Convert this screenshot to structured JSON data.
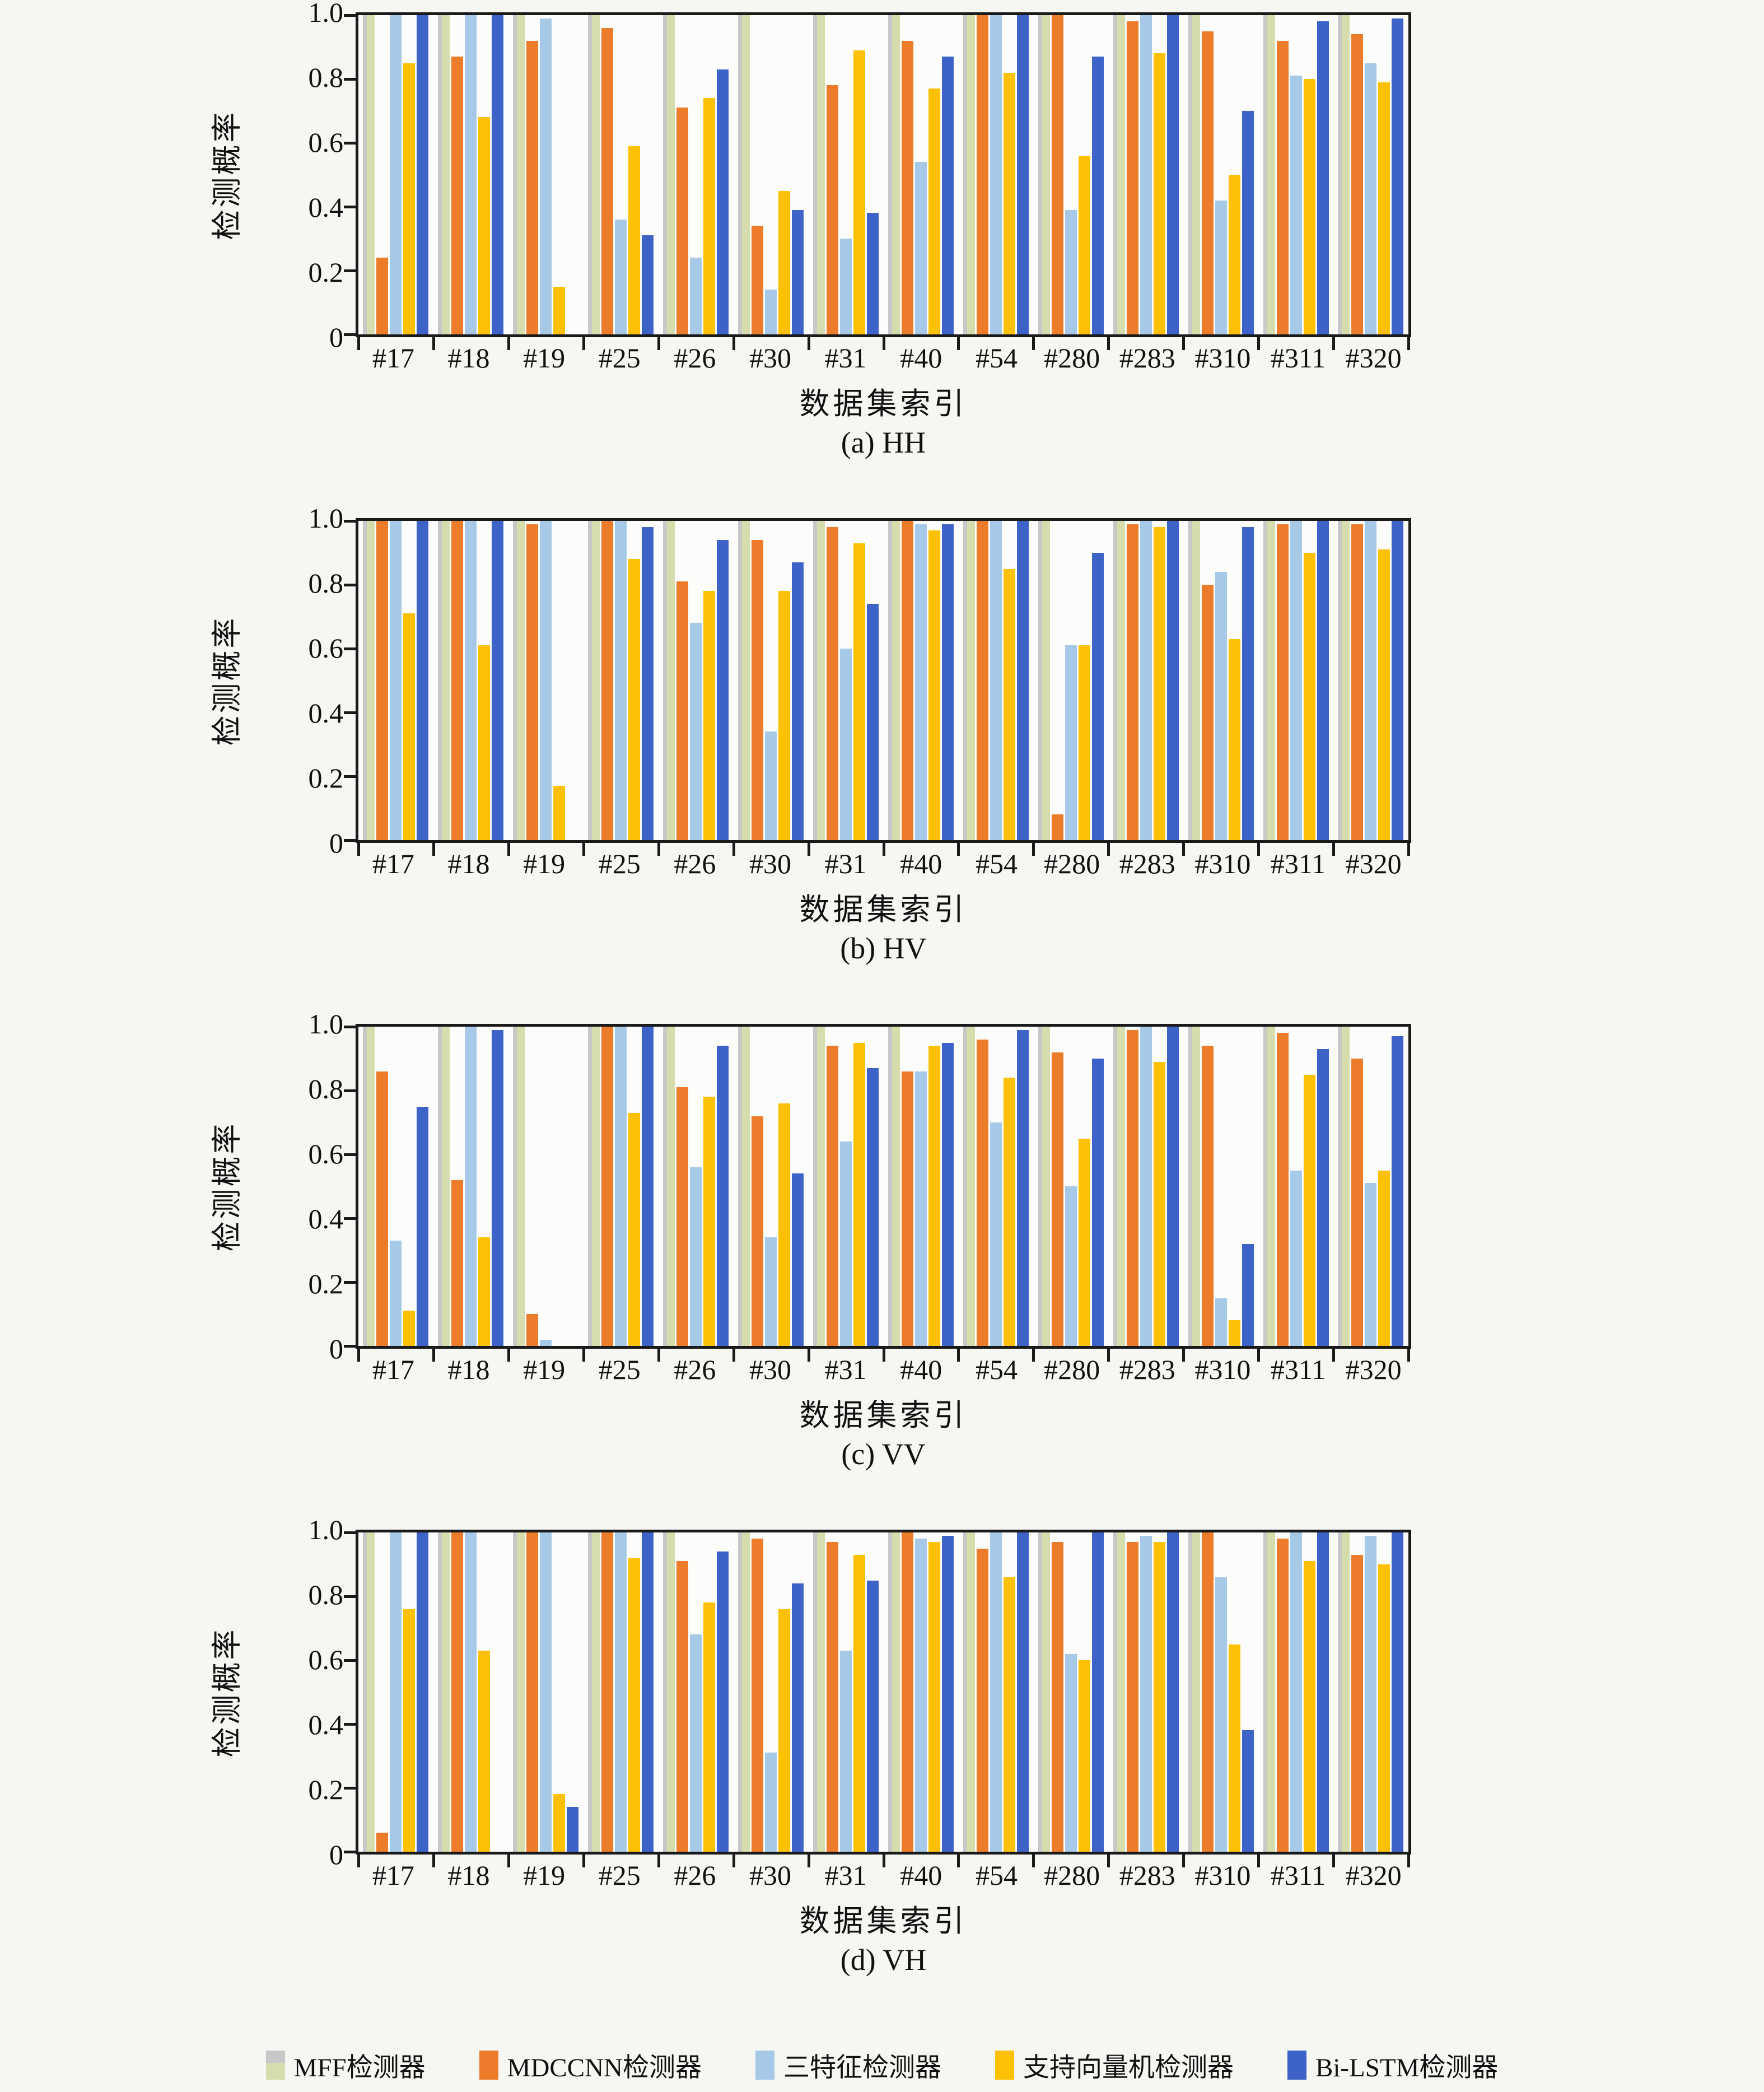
{
  "figure": {
    "background": "#f6f6f3",
    "plot_background": "#fcfcfa",
    "axis_color": "#1a1a1a",
    "ylabel": "检测概率",
    "xlabel": "数据集索引",
    "yticks": [
      "1.0",
      "0.8",
      "0.6",
      "0.4",
      "0.2",
      "0"
    ],
    "legend": [
      {
        "key": "mff",
        "label": "MFF检测器",
        "color": "#d6dcab",
        "swatch_top": "#c8c8c8"
      },
      {
        "key": "mdccnn",
        "label": "MDCCNN检测器",
        "color": "#ec7c2a"
      },
      {
        "key": "threefeat",
        "label": "三特征检测器",
        "color": "#a7c9e8"
      },
      {
        "key": "svm",
        "label": "支持向量机检测器",
        "color": "#fcc105"
      },
      {
        "key": "bilstm",
        "label": "Bi-LSTM检测器",
        "color": "#3d63c9"
      }
    ]
  },
  "chart_data": [
    {
      "type": "bar",
      "title": "(a) HH",
      "xlabel": "数据集索引",
      "ylabel": "检测概率",
      "ylim": [
        0,
        1
      ],
      "grid": false,
      "legend_position": "bottom-of-figure",
      "categories": [
        "#17",
        "#18",
        "#19",
        "#25",
        "#26",
        "#30",
        "#31",
        "#40",
        "#54",
        "#280",
        "#283",
        "#310",
        "#311",
        "#320"
      ],
      "series": [
        {
          "name": "MFF检测器",
          "key": "mff",
          "color": "#d6dcab",
          "values": [
            1.0,
            1.0,
            1.0,
            1.0,
            1.0,
            1.0,
            1.0,
            1.0,
            1.0,
            1.0,
            1.0,
            1.0,
            1.0,
            1.0
          ]
        },
        {
          "name": "MDCCNN检测器",
          "key": "mdccnn",
          "color": "#ec7c2a",
          "values": [
            0.24,
            0.87,
            0.92,
            0.96,
            0.71,
            0.34,
            0.78,
            0.92,
            1.0,
            1.0,
            0.98,
            0.95,
            0.92,
            0.94
          ]
        },
        {
          "name": "三特征检测器",
          "key": "threefeat",
          "color": "#a7c9e8",
          "values": [
            1.0,
            1.0,
            0.99,
            0.36,
            0.24,
            0.14,
            0.3,
            0.54,
            1.0,
            0.39,
            1.0,
            0.42,
            0.81,
            0.85
          ]
        },
        {
          "name": "支持向量机检测器",
          "key": "svm",
          "color": "#fcc105",
          "values": [
            0.85,
            0.68,
            0.15,
            0.59,
            0.74,
            0.45,
            0.89,
            0.77,
            0.82,
            0.56,
            0.88,
            0.5,
            0.8,
            0.79
          ]
        },
        {
          "name": "Bi-LSTM检测器",
          "key": "bilstm",
          "color": "#3d63c9",
          "values": [
            1.0,
            1.0,
            0.0,
            0.31,
            0.83,
            0.39,
            0.38,
            0.87,
            1.0,
            0.87,
            1.0,
            0.7,
            0.98,
            0.99
          ]
        }
      ]
    },
    {
      "type": "bar",
      "title": "(b) HV",
      "xlabel": "数据集索引",
      "ylabel": "检测概率",
      "ylim": [
        0,
        1
      ],
      "grid": false,
      "legend_position": "bottom-of-figure",
      "categories": [
        "#17",
        "#18",
        "#19",
        "#25",
        "#26",
        "#30",
        "#31",
        "#40",
        "#54",
        "#280",
        "#283",
        "#310",
        "#311",
        "#320"
      ],
      "series": [
        {
          "name": "MFF检测器",
          "key": "mff",
          "color": "#d6dcab",
          "values": [
            1.0,
            1.0,
            1.0,
            1.0,
            1.0,
            1.0,
            1.0,
            1.0,
            1.0,
            1.0,
            1.0,
            1.0,
            1.0,
            1.0
          ]
        },
        {
          "name": "MDCCNN检测器",
          "key": "mdccnn",
          "color": "#ec7c2a",
          "values": [
            1.0,
            1.0,
            0.99,
            1.0,
            0.81,
            0.94,
            0.98,
            1.0,
            1.0,
            0.08,
            0.99,
            0.8,
            0.99,
            0.99
          ]
        },
        {
          "name": "三特征检测器",
          "key": "threefeat",
          "color": "#a7c9e8",
          "values": [
            1.0,
            1.0,
            1.0,
            1.0,
            0.68,
            0.34,
            0.6,
            0.99,
            1.0,
            0.61,
            1.0,
            0.84,
            1.0,
            1.0
          ]
        },
        {
          "name": "支持向量机检测器",
          "key": "svm",
          "color": "#fcc105",
          "values": [
            0.71,
            0.61,
            0.17,
            0.88,
            0.78,
            0.78,
            0.93,
            0.97,
            0.85,
            0.61,
            0.98,
            0.63,
            0.9,
            0.91
          ]
        },
        {
          "name": "Bi-LSTM检测器",
          "key": "bilstm",
          "color": "#3d63c9",
          "values": [
            1.0,
            1.0,
            0.0,
            0.98,
            0.94,
            0.87,
            0.74,
            0.99,
            1.0,
            0.9,
            1.0,
            0.98,
            1.0,
            1.0
          ]
        }
      ]
    },
    {
      "type": "bar",
      "title": "(c) VV",
      "xlabel": "数据集索引",
      "ylabel": "检测概率",
      "ylim": [
        0,
        1
      ],
      "grid": false,
      "legend_position": "bottom-of-figure",
      "categories": [
        "#17",
        "#18",
        "#19",
        "#25",
        "#26",
        "#30",
        "#31",
        "#40",
        "#54",
        "#280",
        "#283",
        "#310",
        "#311",
        "#320"
      ],
      "series": [
        {
          "name": "MFF检测器",
          "key": "mff",
          "color": "#d6dcab",
          "values": [
            1.0,
            1.0,
            1.0,
            1.0,
            1.0,
            1.0,
            1.0,
            1.0,
            1.0,
            1.0,
            1.0,
            1.0,
            1.0,
            1.0
          ]
        },
        {
          "name": "MDCCNN检测器",
          "key": "mdccnn",
          "color": "#ec7c2a",
          "values": [
            0.86,
            0.52,
            0.1,
            1.0,
            0.81,
            0.72,
            0.94,
            0.86,
            0.96,
            0.92,
            0.99,
            0.94,
            0.98,
            0.9
          ]
        },
        {
          "name": "三特征检测器",
          "key": "threefeat",
          "color": "#a7c9e8",
          "values": [
            0.33,
            1.0,
            0.02,
            1.0,
            0.56,
            0.34,
            0.64,
            0.86,
            0.7,
            0.5,
            1.0,
            0.15,
            0.55,
            0.51
          ]
        },
        {
          "name": "支持向量机检测器",
          "key": "svm",
          "color": "#fcc105",
          "values": [
            0.11,
            0.34,
            0.0,
            0.73,
            0.78,
            0.76,
            0.95,
            0.94,
            0.84,
            0.65,
            0.89,
            0.08,
            0.85,
            0.55
          ]
        },
        {
          "name": "Bi-LSTM检测器",
          "key": "bilstm",
          "color": "#3d63c9",
          "values": [
            0.75,
            0.99,
            0.0,
            1.0,
            0.94,
            0.54,
            0.87,
            0.95,
            0.99,
            0.9,
            1.0,
            0.32,
            0.93,
            0.97
          ]
        }
      ]
    },
    {
      "type": "bar",
      "title": "(d) VH",
      "xlabel": "数据集索引",
      "ylabel": "检测概率",
      "ylim": [
        0,
        1
      ],
      "grid": false,
      "legend_position": "bottom-of-figure",
      "categories": [
        "#17",
        "#18",
        "#19",
        "#25",
        "#26",
        "#30",
        "#31",
        "#40",
        "#54",
        "#280",
        "#283",
        "#310",
        "#311",
        "#320"
      ],
      "series": [
        {
          "name": "MFF检测器",
          "key": "mff",
          "color": "#d6dcab",
          "values": [
            1.0,
            1.0,
            1.0,
            1.0,
            1.0,
            1.0,
            1.0,
            1.0,
            1.0,
            1.0,
            1.0,
            1.0,
            1.0,
            1.0
          ]
        },
        {
          "name": "MDCCNN检测器",
          "key": "mdccnn",
          "color": "#ec7c2a",
          "values": [
            0.06,
            1.0,
            1.0,
            1.0,
            0.91,
            0.98,
            0.97,
            1.0,
            0.95,
            0.97,
            0.97,
            1.0,
            0.98,
            0.93
          ]
        },
        {
          "name": "三特征检测器",
          "key": "threefeat",
          "color": "#a7c9e8",
          "values": [
            1.0,
            1.0,
            1.0,
            1.0,
            0.68,
            0.31,
            0.63,
            0.98,
            1.0,
            0.62,
            0.99,
            0.86,
            1.0,
            0.99
          ]
        },
        {
          "name": "支持向量机检测器",
          "key": "svm",
          "color": "#fcc105",
          "values": [
            0.76,
            0.63,
            0.18,
            0.92,
            0.78,
            0.76,
            0.93,
            0.97,
            0.86,
            0.6,
            0.97,
            0.65,
            0.91,
            0.9
          ]
        },
        {
          "name": "Bi-LSTM检测器",
          "key": "bilstm",
          "color": "#3d63c9",
          "values": [
            1.0,
            0.0,
            0.14,
            1.0,
            0.94,
            0.84,
            0.85,
            0.99,
            1.0,
            1.0,
            1.0,
            0.38,
            1.0,
            1.0
          ]
        }
      ]
    }
  ]
}
